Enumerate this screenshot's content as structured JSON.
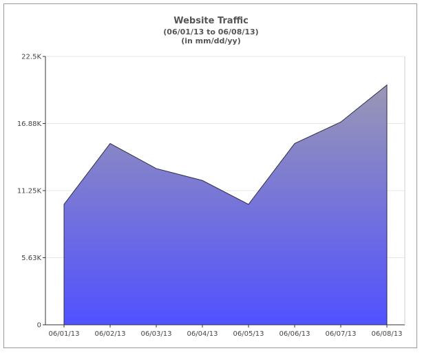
{
  "chart_data": {
    "type": "area",
    "title": "Website Traffic",
    "subtitle_lines": [
      "(06/01/13 to 06/08/13)",
      "(in mm/dd/yy)"
    ],
    "xlabel": "",
    "ylabel": "",
    "categories": [
      "06/01/13",
      "06/02/13",
      "06/03/13",
      "06/04/13",
      "06/05/13",
      "06/06/13",
      "06/07/13",
      "06/08/13"
    ],
    "series": [
      {
        "values": [
          10100,
          15200,
          13100,
          12100,
          10100,
          15200,
          17000,
          20100
        ]
      }
    ],
    "yticks": [
      "0",
      "5.63K",
      "11.25K",
      "16.88K",
      "22.5K"
    ],
    "ytick_values": [
      0,
      5625,
      11250,
      16875,
      22500
    ],
    "ylim": [
      0,
      22500
    ],
    "grid": true,
    "legend": "none",
    "colors": {
      "fill_top": "#9a97b4",
      "fill_bottom": "#5151ff",
      "line": "#2e2e48",
      "grid": "#e6e6e6",
      "axis": "#333333"
    }
  }
}
